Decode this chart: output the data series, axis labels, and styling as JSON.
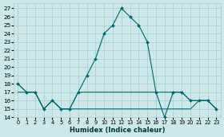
{
  "xlabel": "Humidex (Indice chaleur)",
  "bg_color": "#cce8e8",
  "grid_color": "#aacccc",
  "line_color": "#006666",
  "xlim": [
    -0.5,
    23.5
  ],
  "ylim": [
    14,
    27.6
  ],
  "x": [
    0,
    1,
    2,
    3,
    4,
    5,
    6,
    7,
    8,
    9,
    10,
    11,
    12,
    13,
    14,
    15,
    16,
    17,
    18,
    19,
    20,
    21,
    22,
    23
  ],
  "y_main": [
    18,
    17,
    17,
    15,
    16,
    15,
    15,
    17,
    19,
    21,
    24,
    25,
    27,
    26,
    25,
    23,
    17,
    14,
    17,
    17,
    16,
    16,
    16,
    15
  ],
  "y_mid": [
    18,
    17,
    17,
    15,
    16,
    15,
    15,
    17,
    17,
    17,
    17,
    17,
    17,
    17,
    17,
    17,
    17,
    17,
    17,
    17,
    16,
    16,
    16,
    15
  ],
  "y_low": [
    17,
    17,
    17,
    15,
    16,
    15,
    15,
    15,
    15,
    15,
    15,
    15,
    15,
    15,
    15,
    15,
    15,
    15,
    15,
    15,
    15,
    16,
    16,
    15
  ]
}
